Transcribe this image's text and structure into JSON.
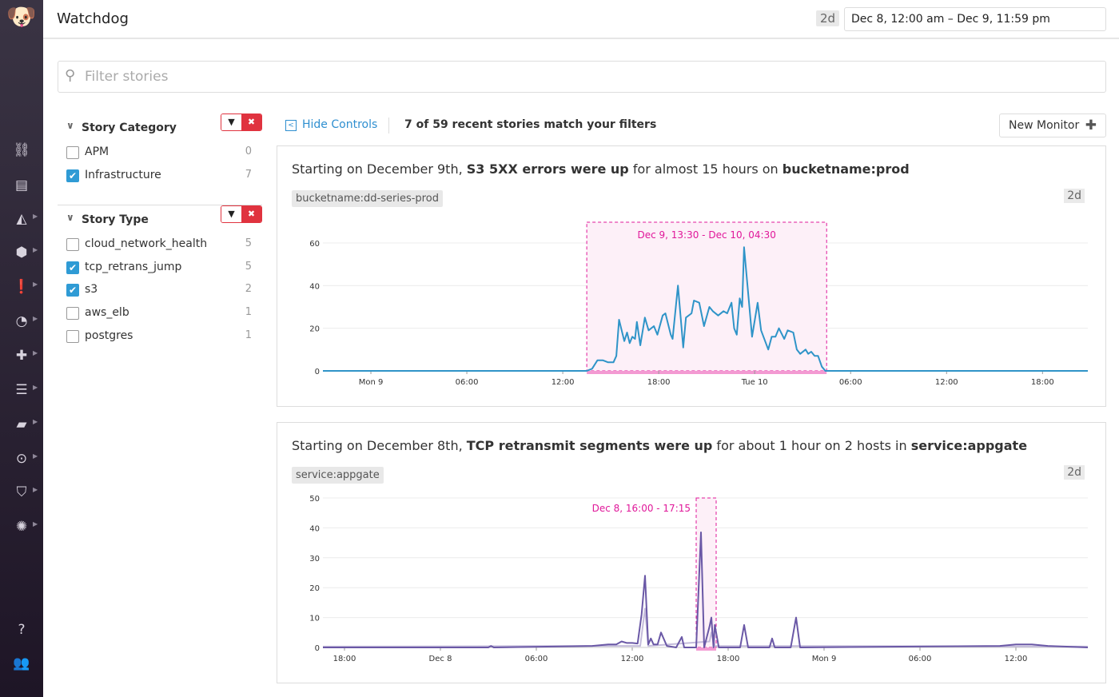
{
  "app": {
    "title": "Watchdog",
    "range_badge": "2d",
    "range": "Dec 8, 12:00 am – Dec 9, 11:59 pm"
  },
  "sidebar": {
    "logo": "datadog-logo",
    "items": [
      {
        "icon": "binoculars-icon",
        "glyph": "⛓"
      },
      {
        "icon": "list-icon",
        "glyph": "▤"
      },
      {
        "icon": "area-chart-icon",
        "glyph": "◭"
      },
      {
        "icon": "infrastructure-icon",
        "glyph": "⬢"
      },
      {
        "icon": "alert-icon",
        "glyph": "❗"
      },
      {
        "icon": "gauge-icon",
        "glyph": "◔"
      },
      {
        "icon": "integrations-icon",
        "glyph": "✚"
      },
      {
        "icon": "apm-icon",
        "glyph": "☰"
      },
      {
        "icon": "notebook-icon",
        "glyph": "▰"
      },
      {
        "icon": "logs-icon",
        "glyph": "⊙"
      },
      {
        "icon": "security-icon",
        "glyph": "⛉"
      },
      {
        "icon": "synthetics-icon",
        "glyph": "✺"
      },
      {
        "icon": "help-icon",
        "glyph": "?"
      },
      {
        "icon": "team-icon",
        "glyph": "👥"
      }
    ]
  },
  "search": {
    "placeholder": "Filter stories"
  },
  "filters": [
    {
      "title": "Story Category",
      "options": [
        {
          "label": "APM",
          "count": "0",
          "checked": false
        },
        {
          "label": "Infrastructure",
          "count": "7",
          "checked": true
        }
      ]
    },
    {
      "title": "Story Type",
      "options": [
        {
          "label": "cloud_network_health",
          "count": "5",
          "checked": false
        },
        {
          "label": "tcp_retrans_jump",
          "count": "5",
          "checked": true
        },
        {
          "label": "s3",
          "count": "2",
          "checked": true
        },
        {
          "label": "aws_elb",
          "count": "1",
          "checked": false
        },
        {
          "label": "postgres",
          "count": "1",
          "checked": false
        }
      ]
    }
  ],
  "controls": {
    "hide": "Hide Controls",
    "match": "7 of 59 recent stories match your filters",
    "new_monitor": "New Monitor"
  },
  "stories": [
    {
      "title": [
        "Starting on December 9th, ",
        "S3 5XX errors were up",
        " for almost 15 hours on ",
        "bucketname:prod"
      ],
      "tag": "bucketname:dd-series-prod",
      "badge": "2d"
    },
    {
      "title": [
        "Starting on December 8th, ",
        "TCP retransmit segments were up",
        " for about 1 hour on 2 hosts in ",
        "service:appgate"
      ],
      "tag": "service:appgate",
      "badge": "2d"
    }
  ],
  "chart_data": [
    {
      "type": "line",
      "xlim": [
        "Dec 8 21:00",
        "Dec 10 20:50"
      ],
      "ylim": [
        0,
        60
      ],
      "yticks": [
        0,
        20,
        40,
        60
      ],
      "grid": true,
      "xticks": [
        {
          "t": "Dec 9 00:00",
          "label": "Mon 9"
        },
        {
          "t": "Dec 9 06:00",
          "label": "06:00"
        },
        {
          "t": "Dec 9 12:00",
          "label": "12:00"
        },
        {
          "t": "Dec 9 18:00",
          "label": "18:00"
        },
        {
          "t": "Dec 10 00:00",
          "label": "Tue 10"
        },
        {
          "t": "Dec 10 06:00",
          "label": "06:00"
        },
        {
          "t": "Dec 10 12:00",
          "label": "12:00"
        },
        {
          "t": "Dec 10 18:00",
          "label": "18:00"
        }
      ],
      "highlight": {
        "from": "Dec 9 13:30",
        "to": "Dec 10 04:30",
        "label": "Dec 9, 13:30 - Dec 10, 04:30",
        "color": "#e0189a"
      },
      "series": [
        {
          "color": "#2f94c8",
          "points": [
            [
              "Dec 8 21:00",
              0
            ],
            [
              "Dec 9 13:30",
              0
            ],
            [
              "Dec 9 13:50",
              1
            ],
            [
              "Dec 9 14:10",
              5
            ],
            [
              "Dec 9 14:30",
              5
            ],
            [
              "Dec 9 14:50",
              4
            ],
            [
              "Dec 9 15:10",
              4
            ],
            [
              "Dec 9 15:21",
              7
            ],
            [
              "Dec 9 15:31",
              24
            ],
            [
              "Dec 9 15:51",
              14
            ],
            [
              "Dec 9 16:01",
              18
            ],
            [
              "Dec 9 16:11",
              13
            ],
            [
              "Dec 9 16:21",
              16
            ],
            [
              "Dec 9 16:31",
              15
            ],
            [
              "Dec 9 16:38",
              23
            ],
            [
              "Dec 9 16:51",
              12
            ],
            [
              "Dec 9 17:08",
              25
            ],
            [
              "Dec 9 17:22",
              19
            ],
            [
              "Dec 9 17:42",
              21
            ],
            [
              "Dec 9 17:55",
              17
            ],
            [
              "Dec 9 18:15",
              26
            ],
            [
              "Dec 9 18:25",
              27
            ],
            [
              "Dec 9 18:45",
              17
            ],
            [
              "Dec 9 18:52",
              15
            ],
            [
              "Dec 9 19:12",
              40
            ],
            [
              "Dec 9 19:32",
              11
            ],
            [
              "Dec 9 19:42",
              25
            ],
            [
              "Dec 9 20:03",
              27
            ],
            [
              "Dec 9 20:12",
              33
            ],
            [
              "Dec 9 20:32",
              32
            ],
            [
              "Dec 9 20:50",
              21
            ],
            [
              "Dec 9 21:10",
              30
            ],
            [
              "Dec 9 21:23",
              28
            ],
            [
              "Dec 9 21:43",
              26
            ],
            [
              "Dec 9 22:03",
              28
            ],
            [
              "Dec 9 22:17",
              27
            ],
            [
              "Dec 9 22:33",
              32
            ],
            [
              "Dec 9 22:43",
              20
            ],
            [
              "Dec 9 22:53",
              17
            ],
            [
              "Dec 9 23:04",
              34
            ],
            [
              "Dec 9 23:13",
              30
            ],
            [
              "Dec 9 23:20",
              58
            ],
            [
              "Dec 9 23:33",
              40
            ],
            [
              "Dec 9 23:50",
              16
            ],
            [
              "Dec 10 00:11",
              32
            ],
            [
              "Dec 10 00:24",
              19
            ],
            [
              "Dec 10 00:51",
              10
            ],
            [
              "Dec 10 01:04",
              16
            ],
            [
              "Dec 10 01:18",
              16
            ],
            [
              "Dec 10 01:31",
              20
            ],
            [
              "Dec 10 01:51",
              15
            ],
            [
              "Dec 10 02:04",
              19
            ],
            [
              "Dec 10 02:25",
              18
            ],
            [
              "Dec 10 02:38",
              10
            ],
            [
              "Dec 10 02:51",
              8
            ],
            [
              "Dec 10 03:11",
              10
            ],
            [
              "Dec 10 03:21",
              8
            ],
            [
              "Dec 10 03:32",
              9
            ],
            [
              "Dec 10 03:45",
              7
            ],
            [
              "Dec 10 03:58",
              7
            ],
            [
              "Dec 10 04:12",
              2
            ],
            [
              "Dec 10 04:25",
              0
            ],
            [
              "Dec 10 20:50",
              0
            ]
          ]
        }
      ]
    },
    {
      "type": "line",
      "xlim": [
        "Dec 7 16:39",
        "Dec 9 16:30"
      ],
      "ylim": [
        0,
        50
      ],
      "yticks": [
        0,
        10,
        20,
        30,
        40,
        50
      ],
      "grid": true,
      "xticks": [
        {
          "t": "Dec 7 18:00",
          "label": "18:00"
        },
        {
          "t": "Dec 8 00:00",
          "label": "Dec 8"
        },
        {
          "t": "Dec 8 06:00",
          "label": "06:00"
        },
        {
          "t": "Dec 8 12:00",
          "label": "12:00"
        },
        {
          "t": "Dec 8 18:00",
          "label": "18:00"
        },
        {
          "t": "Dec 9 00:00",
          "label": "Mon 9"
        },
        {
          "t": "Dec 9 06:00",
          "label": "06:00"
        },
        {
          "t": "Dec 9 12:00",
          "label": "12:00"
        }
      ],
      "highlight": {
        "from": "Dec 8 16:00",
        "to": "Dec 8 17:15",
        "label": "Dec 8, 16:00 - 17:15",
        "color": "#e0189a"
      },
      "series": [
        {
          "color": "#c4bcdb",
          "points": [
            [
              "Dec 7 16:39",
              0.3
            ],
            [
              "Dec 8 12:30",
              0.5
            ],
            [
              "Dec 8 12:48",
              13
            ],
            [
              "Dec 8 13:00",
              0.5
            ],
            [
              "Dec 8 16:50",
              2
            ],
            [
              "Dec 8 16:57",
              5
            ],
            [
              "Dec 8 17:10",
              0.5
            ],
            [
              "Dec 9 16:30",
              0.3
            ]
          ]
        },
        {
          "color": "#6a58a6",
          "points": [
            [
              "Dec 7 16:39",
              0
            ],
            [
              "Dec 8 03:00",
              0
            ],
            [
              "Dec 8 03:10",
              0.5
            ],
            [
              "Dec 8 03:20",
              0
            ],
            [
              "Dec 8 09:30",
              0.5
            ],
            [
              "Dec 8 10:30",
              1
            ],
            [
              "Dec 8 11:00",
              1
            ],
            [
              "Dec 8 11:20",
              2
            ],
            [
              "Dec 8 11:40",
              1.5
            ],
            [
              "Dec 8 12:00",
              1.5
            ],
            [
              "Dec 8 12:20",
              1.3
            ],
            [
              "Dec 8 12:35",
              11
            ],
            [
              "Dec 8 12:48",
              24
            ],
            [
              "Dec 8 13:00",
              1
            ],
            [
              "Dec 8 13:10",
              3
            ],
            [
              "Dec 8 13:20",
              1
            ],
            [
              "Dec 8 13:35",
              1
            ],
            [
              "Dec 8 13:48",
              5
            ],
            [
              "Dec 8 14:10",
              0.5
            ],
            [
              "Dec 8 14:45",
              0
            ],
            [
              "Dec 8 15:06",
              3.5
            ],
            [
              "Dec 8 15:15",
              0
            ],
            [
              "Dec 8 16:00",
              0
            ],
            [
              "Dec 8 16:18",
              38.5
            ],
            [
              "Dec 8 16:30",
              0
            ],
            [
              "Dec 8 16:50",
              7
            ],
            [
              "Dec 8 16:57",
              10
            ],
            [
              "Dec 8 17:05",
              0
            ],
            [
              "Dec 8 17:10",
              7.5
            ],
            [
              "Dec 8 17:25",
              0
            ],
            [
              "Dec 8 18:45",
              0
            ],
            [
              "Dec 8 19:00",
              7.5
            ],
            [
              "Dec 8 19:15",
              0
            ],
            [
              "Dec 8 20:35",
              0
            ],
            [
              "Dec 8 20:45",
              3
            ],
            [
              "Dec 8 20:55",
              0
            ],
            [
              "Dec 8 21:55",
              0
            ],
            [
              "Dec 8 22:15",
              10
            ],
            [
              "Dec 8 22:30",
              0
            ],
            [
              "Dec 9 11:00",
              0.5
            ],
            [
              "Dec 9 12:00",
              1
            ],
            [
              "Dec 9 13:00",
              1
            ],
            [
              "Dec 9 14:00",
              0.5
            ],
            [
              "Dec 9 16:30",
              0
            ]
          ]
        }
      ]
    }
  ]
}
